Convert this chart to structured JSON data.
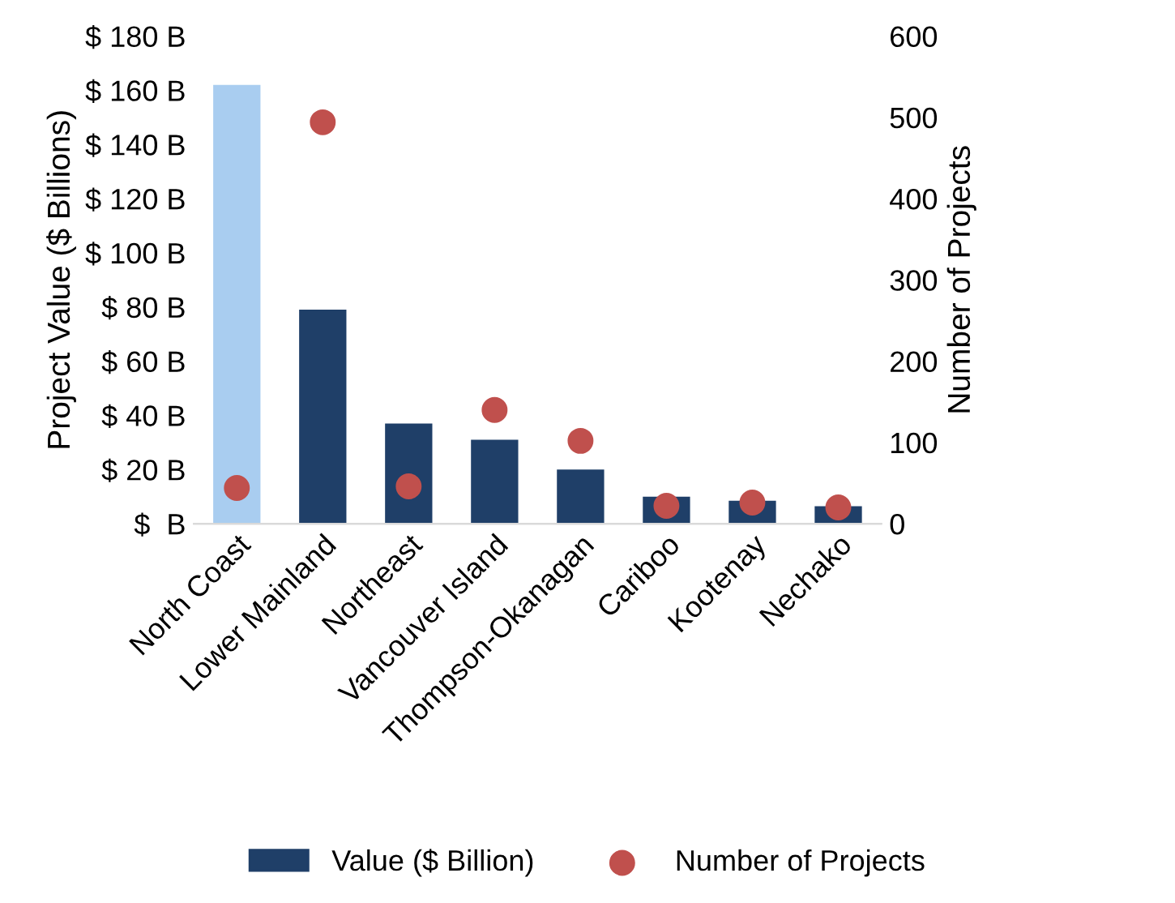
{
  "chart_data": {
    "type": "bar",
    "ylabel": "Project Value ($ Billions)",
    "y2label": "Number of Projects",
    "categories": [
      "North Coast",
      "Lower Mainland",
      "Northeast",
      "Vancouver Island",
      "Thompson-Okanagan",
      "Cariboo",
      "Kootenay",
      "Nechako"
    ],
    "series": [
      {
        "name": "Value ($ Billion)",
        "color": "#1f3f68",
        "colors": [
          "#a9cdf0",
          "#1f3f68",
          "#1f3f68",
          "#1f3f68",
          "#1f3f68",
          "#1f3f68",
          "#1f3f68",
          "#1f3f68"
        ],
        "values": [
          162,
          79,
          37,
          31,
          20,
          10,
          8.5,
          6.5
        ]
      },
      {
        "name": "Number of Projects",
        "type": "scatter",
        "axis": "y2",
        "color": "#c0504d",
        "values": [
          44,
          494,
          46,
          140,
          102,
          22,
          26,
          20
        ]
      }
    ],
    "ylim": [
      0,
      180
    ],
    "yticks": [
      {
        "value": 0,
        "label": "$  B"
      },
      {
        "value": 20,
        "label": "$ 20 B"
      },
      {
        "value": 40,
        "label": "$ 40 B"
      },
      {
        "value": 60,
        "label": "$ 60 B"
      },
      {
        "value": 80,
        "label": "$ 80 B"
      },
      {
        "value": 100,
        "label": "$ 100 B"
      },
      {
        "value": 120,
        "label": "$ 120 B"
      },
      {
        "value": 140,
        "label": "$ 140 B"
      },
      {
        "value": 160,
        "label": "$ 160 B"
      },
      {
        "value": 180,
        "label": "$ 180 B"
      }
    ],
    "y2lim": [
      0,
      600
    ],
    "y2ticks": [
      0,
      100,
      200,
      300,
      400,
      500,
      600
    ],
    "marker": "circle",
    "grid": false,
    "legend": "bottom"
  }
}
